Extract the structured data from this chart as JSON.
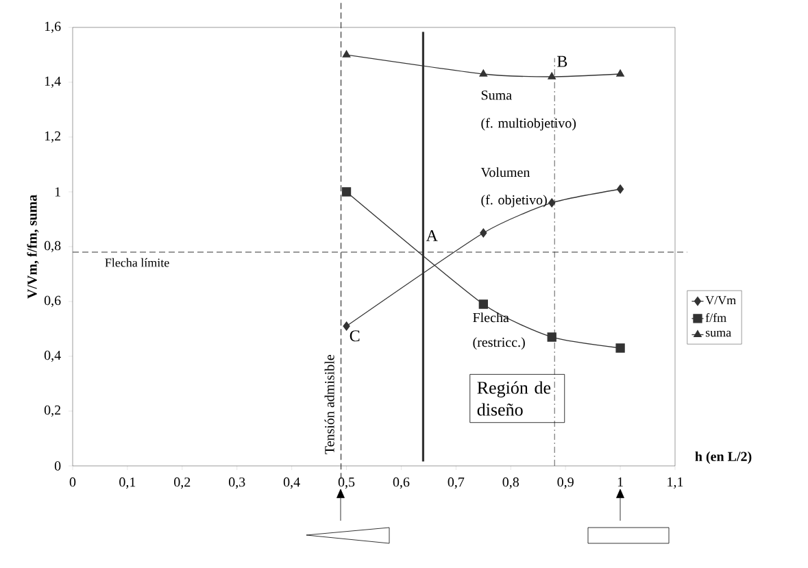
{
  "chart_data": {
    "type": "line",
    "xlabel": "h (en L/2)",
    "ylabel": "V/Vm, f/fm, suma",
    "xlim": [
      0,
      1.1
    ],
    "ylim": [
      0,
      1.6
    ],
    "xticks": [
      0,
      {
        "value": 0.1,
        "label": "0,1"
      },
      {
        "value": 0.2,
        "label": "0,2"
      },
      {
        "value": 0.3,
        "label": "0,3"
      },
      {
        "value": 0.4,
        "label": "0,4"
      },
      {
        "value": 0.5,
        "label": "0,5"
      },
      {
        "value": 0.6,
        "label": "0,6"
      },
      {
        "value": 0.7,
        "label": "0,7"
      },
      {
        "value": 0.8,
        "label": "0,8"
      },
      {
        "value": 0.9,
        "label": "0,9"
      },
      1,
      {
        "value": 1.1,
        "label": "1,1"
      }
    ],
    "yticks": [
      0,
      {
        "value": 0.2,
        "label": "0,2"
      },
      {
        "value": 0.4,
        "label": "0,4"
      },
      {
        "value": 0.6,
        "label": "0,6"
      },
      {
        "value": 0.8,
        "label": "0,8"
      },
      1,
      {
        "value": 1.2,
        "label": "1,2"
      },
      {
        "value": 1.4,
        "label": "1,4"
      },
      {
        "value": 1.6,
        "label": "1,6"
      }
    ],
    "x": [
      0.5,
      0.75,
      0.875,
      1
    ],
    "series": [
      {
        "name": "V/Vm",
        "color": "#333333",
        "marker": "diamond",
        "values": [
          0.51,
          0.85,
          0.96,
          1.01
        ]
      },
      {
        "name": "f/fm",
        "color": "#333333",
        "marker": "square",
        "values": [
          1.0,
          0.59,
          0.47,
          0.43
        ]
      },
      {
        "name": "suma",
        "color": "#333333",
        "marker": "triangle",
        "values": [
          1.5,
          1.43,
          1.42,
          1.43
        ]
      }
    ],
    "line_style": "solid",
    "legend": "right",
    "grid": false,
    "ref_lines": [
      {
        "axis": "x",
        "value": 0.49,
        "label": "Tensión admisible",
        "line_style": "dashed",
        "color": "#333333"
      },
      {
        "axis": "x",
        "value": 0.64,
        "label": null,
        "line_style": "solid",
        "color": "#333333"
      },
      {
        "axis": "x",
        "value": 0.88,
        "label": "B",
        "line_style": "dashdot",
        "color": "#333333"
      },
      {
        "axis": "y",
        "value": 0.78,
        "label": "Flecha límite",
        "line_style": "dashed",
        "color": "#333333"
      }
    ],
    "annotations": [
      {
        "text": "A",
        "x": 0.64,
        "y": 0.78
      },
      {
        "text": "C",
        "x": 0.5,
        "y": 0.51
      },
      "Suma",
      "(f. multiobjetivo)",
      "Volumen",
      "(f. objetivo)",
      "Flecha",
      "(restricc.)",
      "Región de diseño"
    ]
  }
}
